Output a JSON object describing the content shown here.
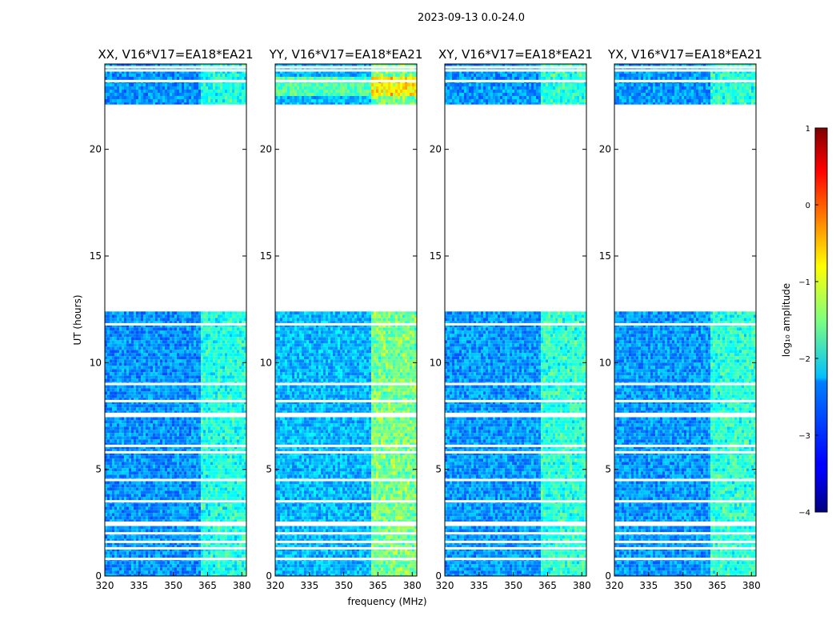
{
  "suptitle": "2023-09-13 0.0-24.0",
  "xlabel": "frequency (MHz)",
  "ylabel": "UT (hours)",
  "colorbar_label": "log₁₀ amplitude",
  "chart_data": {
    "type": "heatmap",
    "x_unit": "MHz",
    "y_unit": "hours",
    "xlim": [
      320,
      382
    ],
    "ylim": [
      0,
      24
    ],
    "x_ticks": [
      320,
      335,
      350,
      365,
      380
    ],
    "y_ticks": [
      0,
      5,
      10,
      15,
      20
    ],
    "color_range": [
      -4,
      1
    ],
    "colorbar_ticks": [
      1,
      0,
      -1,
      -2,
      -3,
      -4
    ],
    "colormap": "jet",
    "panels": [
      {
        "title": "XX, V16*V17=EA18*EA21",
        "strength": 0.15
      },
      {
        "title": "YY, V16*V17=EA18*EA21",
        "strength": 0.45
      },
      {
        "title": "XY, V16*V17=EA18*EA21",
        "strength": 0.2
      },
      {
        "title": "YX, V16*V17=EA18*EA21",
        "strength": 0.2
      }
    ],
    "data_blocks_hours": [
      [
        0,
        12.4
      ],
      [
        22.1,
        24
      ]
    ],
    "no_data_gap_hours": [
      12.4,
      22.1
    ],
    "flagged_rows_hours": [
      0.8,
      1.3,
      1.6,
      2.0,
      2.4,
      2.5,
      3.5,
      4.5,
      5.8,
      6.1,
      7.5,
      7.6,
      8.2,
      9.0,
      11.8,
      23.2,
      23.7,
      23.85
    ],
    "rfi_band_mhz": [
      362,
      382
    ]
  }
}
